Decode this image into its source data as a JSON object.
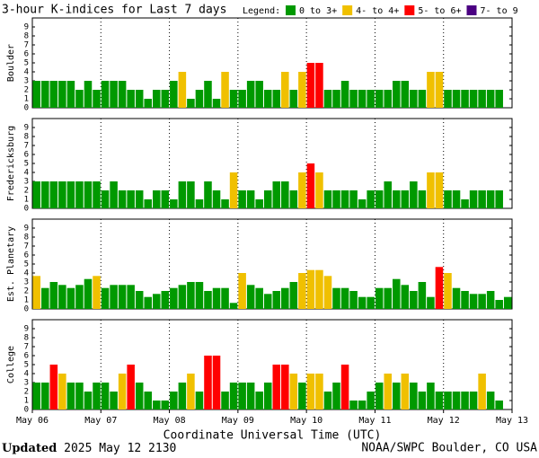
{
  "header": {
    "title": "3-hour K-indices for Last 7 days",
    "legend_label": "Legend:",
    "legend": [
      {
        "label": "0 to 3+",
        "color": "#009900",
        "from": 0
      },
      {
        "label": "4- to 4+",
        "color": "#f0c000",
        "from": 3.67
      },
      {
        "label": "5- to 6+",
        "color": "#ff0000",
        "from": 4.67
      },
      {
        "label": "7- to 9",
        "color": "#4b0082",
        "from": 6.67
      }
    ]
  },
  "chart_data": [
    {
      "type": "bar",
      "title": "Boulder",
      "ylim": [
        0,
        10
      ],
      "yticks": [
        0,
        1,
        2,
        3,
        4,
        5,
        6,
        7,
        8,
        9
      ],
      "xlim": [
        0,
        7
      ],
      "values": [
        3,
        3,
        3,
        3,
        3,
        2,
        3,
        2,
        3,
        3,
        3,
        2,
        2,
        1,
        2,
        2,
        3,
        4,
        1,
        2,
        3,
        1,
        4,
        2,
        2,
        3,
        3,
        2,
        2,
        4,
        2,
        4,
        5,
        5,
        2,
        2,
        3,
        2,
        2,
        2,
        2,
        2,
        3,
        3,
        2,
        2,
        4,
        4,
        2,
        2,
        2,
        2,
        2,
        2,
        2,
        0
      ]
    },
    {
      "type": "bar",
      "title": "Fredericksburg",
      "ylim": [
        0,
        10
      ],
      "yticks": [
        0,
        1,
        2,
        3,
        4,
        5,
        6,
        7,
        8,
        9
      ],
      "xlim": [
        0,
        7
      ],
      "values": [
        3,
        3,
        3,
        3,
        3,
        3,
        3,
        3,
        2,
        3,
        2,
        2,
        2,
        1,
        2,
        2,
        1,
        3,
        3,
        1,
        3,
        2,
        1,
        4,
        2,
        2,
        1,
        2,
        3,
        3,
        2,
        4,
        5,
        4,
        2,
        2,
        2,
        2,
        1,
        2,
        2,
        3,
        2,
        2,
        3,
        2,
        4,
        4,
        2,
        2,
        1,
        2,
        2,
        2,
        2,
        0
      ]
    },
    {
      "type": "bar",
      "title": "Est. Planetary",
      "ylim": [
        0,
        10
      ],
      "yticks": [
        0,
        1,
        2,
        3,
        4,
        5,
        6,
        7,
        8,
        9
      ],
      "xlim": [
        0,
        7
      ],
      "values": [
        3.67,
        2.33,
        3,
        2.67,
        2.33,
        2.67,
        3.33,
        3.67,
        2.33,
        2.67,
        2.67,
        2.67,
        2,
        1.33,
        1.67,
        2,
        2.33,
        2.67,
        3,
        3,
        2,
        2.33,
        2.33,
        0.67,
        4,
        2.67,
        2.33,
        1.67,
        2,
        2.33,
        3,
        4,
        4.33,
        4.33,
        3.67,
        2.33,
        2.33,
        2,
        1.33,
        1.33,
        2.33,
        2.33,
        3.33,
        2.67,
        2,
        3,
        1.33,
        4.67,
        4,
        2.33,
        2,
        1.67,
        1.67,
        2,
        1,
        1.33
      ]
    },
    {
      "type": "bar",
      "title": "College",
      "ylim": [
        0,
        10
      ],
      "yticks": [
        0,
        1,
        2,
        3,
        4,
        5,
        6,
        7,
        8,
        9
      ],
      "xlim": [
        0,
        7
      ],
      "values": [
        3,
        3,
        5,
        4,
        3,
        3,
        2,
        3,
        3,
        2,
        4,
        5,
        3,
        2,
        1,
        1,
        2,
        3,
        4,
        2,
        6,
        6,
        2,
        3,
        3,
        3,
        2,
        3,
        5,
        5,
        4,
        3,
        4,
        4,
        2,
        3,
        5,
        1,
        1,
        2,
        3,
        4,
        3,
        4,
        3,
        2,
        3,
        2,
        2,
        2,
        2,
        2,
        4,
        2,
        1,
        0
      ],
      "xticks": [
        {
          "value": 0,
          "label": "May 06"
        },
        {
          "value": 1,
          "label": "May 07"
        },
        {
          "value": 2,
          "label": "May 08"
        },
        {
          "value": 3,
          "label": "May 09"
        },
        {
          "value": 4,
          "label": "May 10"
        },
        {
          "value": 5,
          "label": "May 11"
        },
        {
          "value": 6,
          "label": "May 12"
        },
        {
          "value": 7,
          "label": "May 13"
        }
      ],
      "xlabel": "Coordinate Universal Time (UTC)"
    }
  ],
  "footer": {
    "updated_label": "Updated",
    "updated": "2025 May 12 2130",
    "source": "NOAA/SWPC Boulder, CO USA"
  }
}
